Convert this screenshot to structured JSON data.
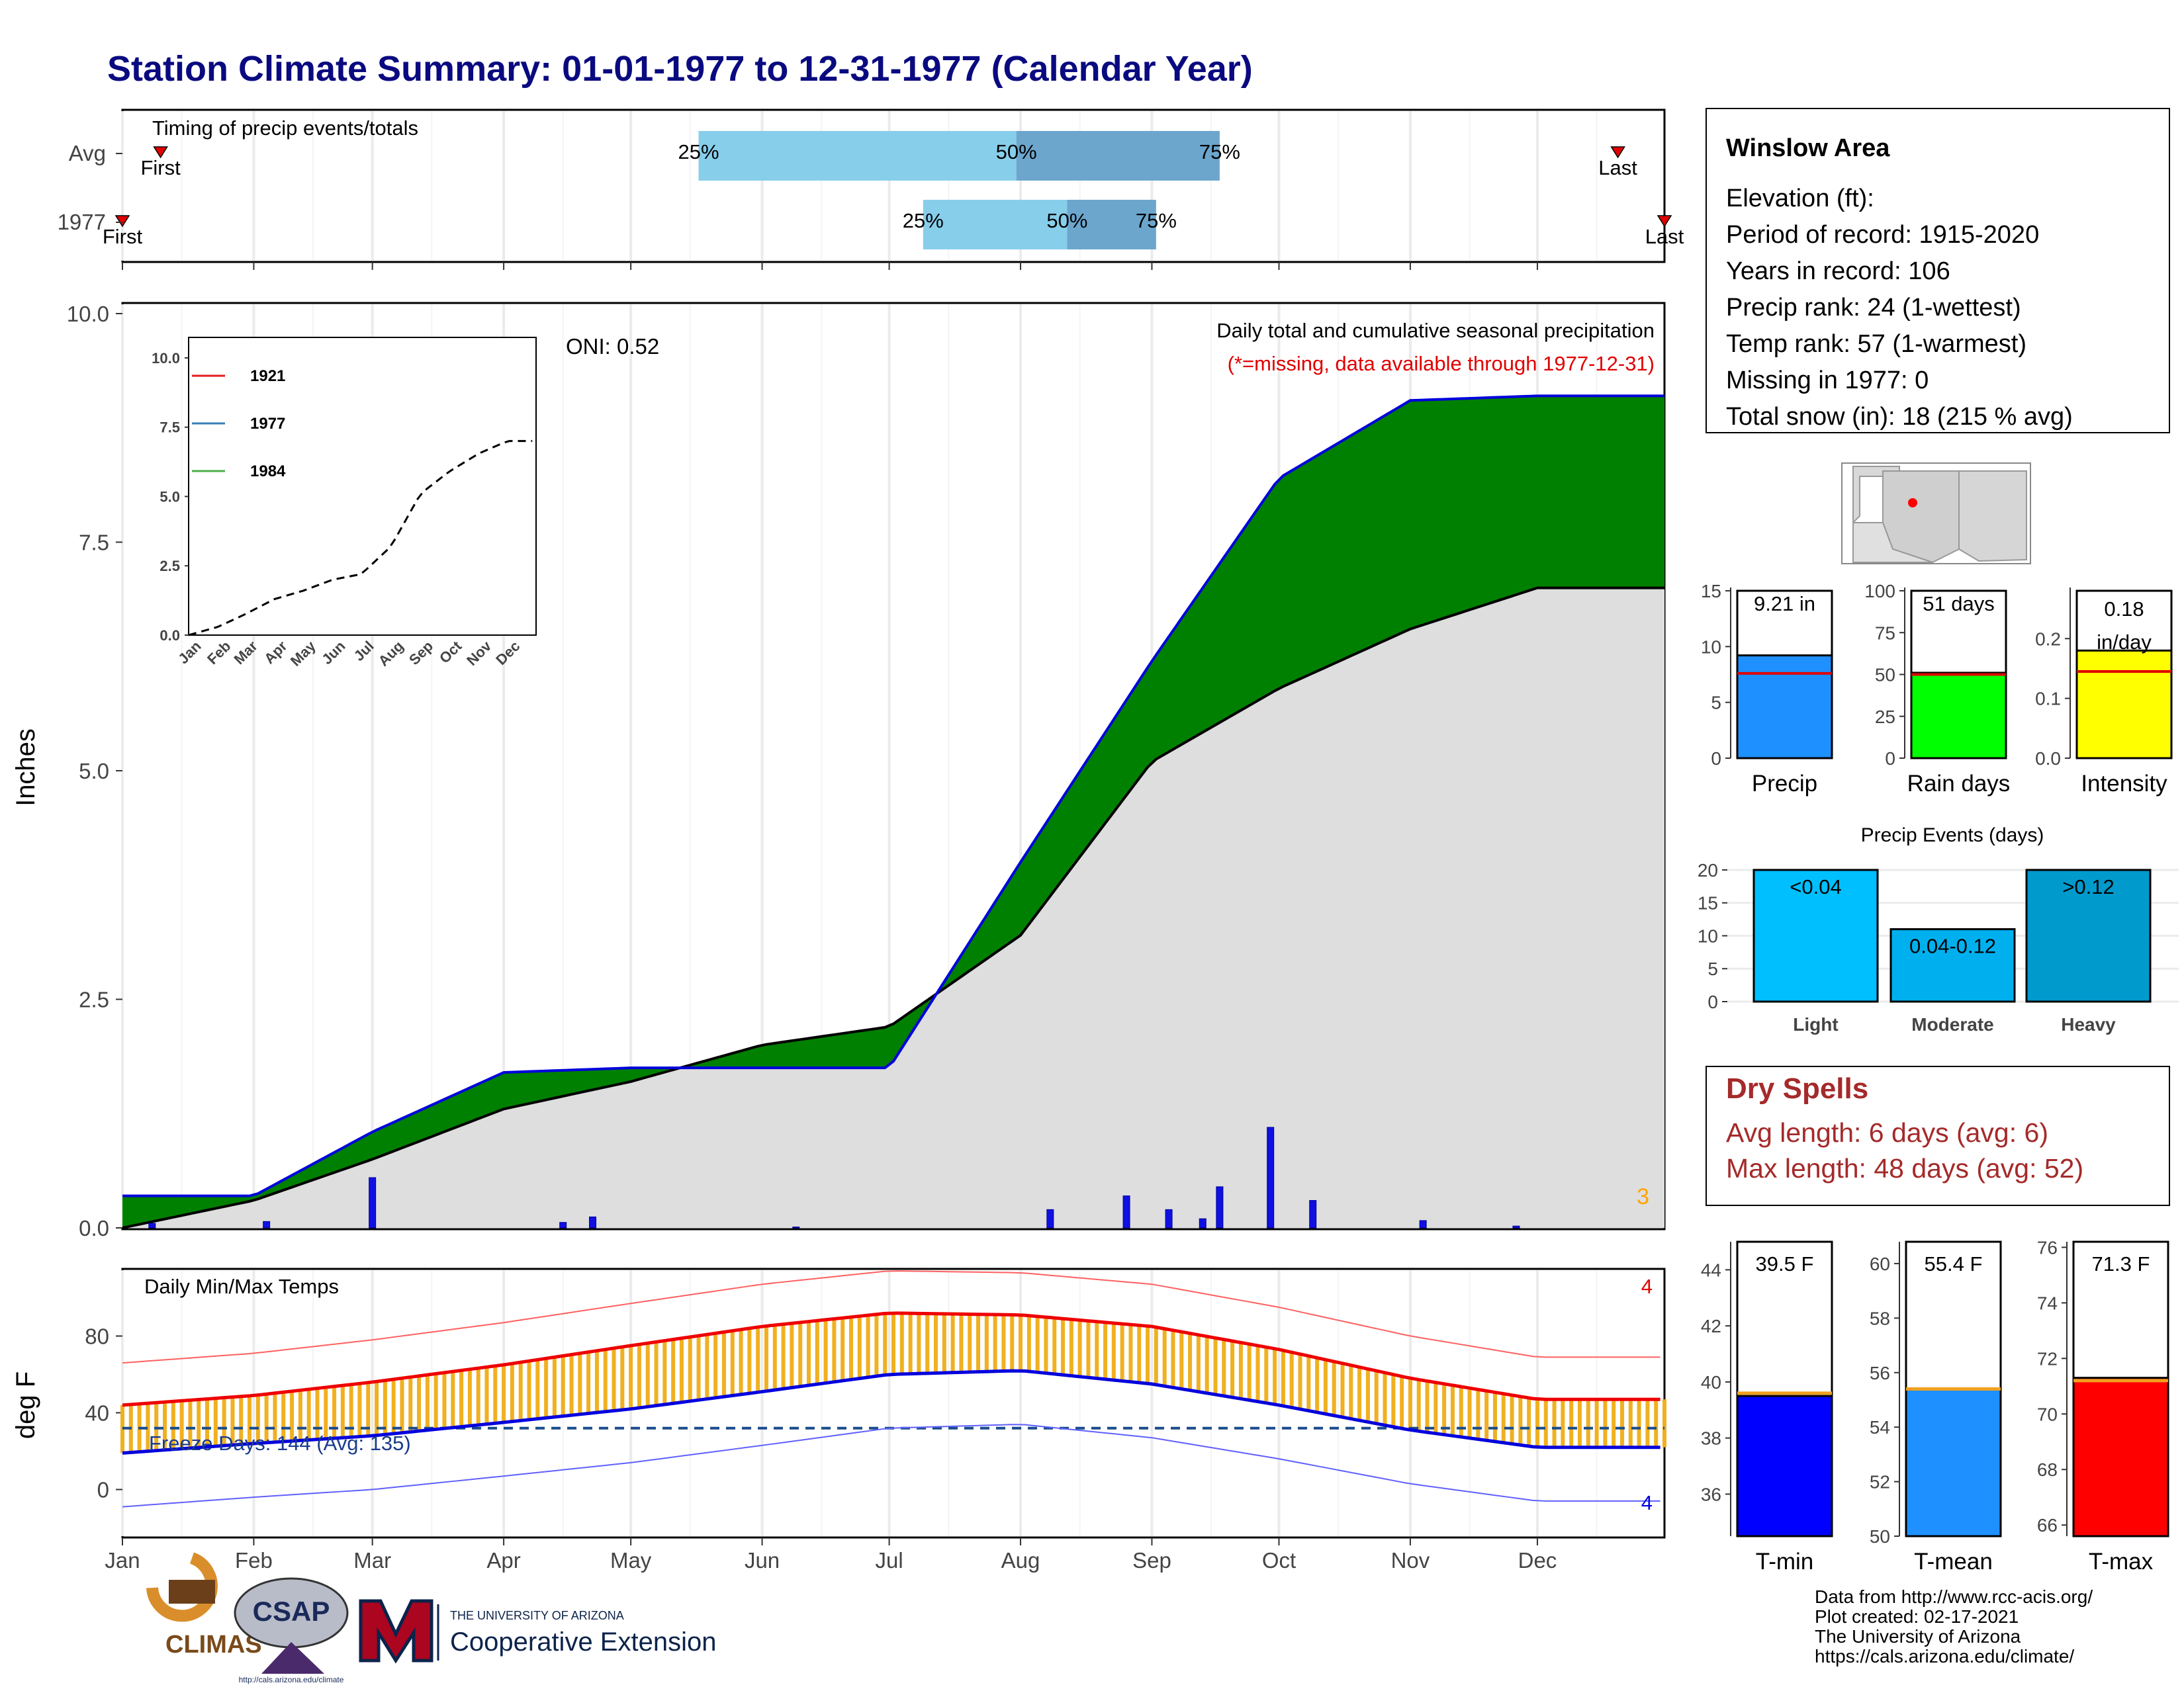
{
  "title": "Station Climate Summary: 01-01-1977 to 12-31-1977 (Calendar Year)",
  "months": [
    "Jan",
    "Feb",
    "Mar",
    "Apr",
    "May",
    "Jun",
    "Jul",
    "Aug",
    "Sep",
    "Oct",
    "Nov",
    "Dec"
  ],
  "timing": {
    "label": "Timing of precip events/totals",
    "rows": [
      {
        "name": "Avg",
        "first_label": "First",
        "last_label": "Last",
        "first_day": 10,
        "last_day": 354,
        "p25": "25%",
        "p50": "50%",
        "p75": "75%",
        "d25": 137,
        "d50": 212,
        "d75": 260
      },
      {
        "name": "1977",
        "first_label": "First",
        "last_label": "Last",
        "first_day": 1,
        "last_day": 365,
        "p25": "25%",
        "p50": "50%",
        "p75": "75%",
        "d25": 190,
        "d50": 224,
        "d75": 245
      }
    ]
  },
  "precip_panel": {
    "ylabel": "Inches",
    "oni": "ONI: 0.52",
    "note1": "Daily total and cumulative seasonal precipitation",
    "note2": "(*=missing, data available through 1977-12-31)",
    "missing_count": "3",
    "yticks": [
      "0.0",
      "2.5",
      "5.0",
      "7.5",
      "10.0"
    ]
  },
  "inset": {
    "legend": [
      "1921",
      "1977",
      "1984"
    ],
    "yticks": [
      "0.0",
      "2.5",
      "5.0",
      "7.5",
      "10.0"
    ],
    "xticks": [
      "Jan",
      "Feb",
      "Mar",
      "Apr",
      "May",
      "Jun",
      "Jul",
      "Aug",
      "Sep",
      "Oct",
      "Nov",
      "Dec"
    ],
    "colors": [
      "#e41a1c",
      "#377eb8",
      "#4daf4a"
    ]
  },
  "temp_panel": {
    "ylabel": "deg F",
    "label": "Daily Min/Max Temps",
    "freeze": "Freeze Days: 144 (Avg: 135)",
    "count_top": "4",
    "count_bottom": "4",
    "yticks": [
      "0",
      "40",
      "80"
    ]
  },
  "station": {
    "name": "Winslow Area",
    "lines": [
      "Elevation (ft):",
      "Period of record: 1915-2020",
      "Years in record: 106",
      "Precip rank: 24 (1-wettest)",
      "Temp rank: 57 (1-warmest)",
      "Missing in 1977: 0",
      "Total snow (in): 18 (215 % avg)"
    ]
  },
  "summary_bars": [
    {
      "name": "Precip",
      "value": 9.21,
      "avg": 7.6,
      "label": "9.21 in",
      "ymax": 15,
      "ticks": [
        "0",
        "5",
        "10",
        "15"
      ],
      "color": "#1e90ff"
    },
    {
      "name": "Rain days",
      "value": 51,
      "avg": 50,
      "label": "51 days",
      "ymax": 100,
      "ticks": [
        "0",
        "25",
        "50",
        "75",
        "100"
      ],
      "color": "#00ff00"
    },
    {
      "name": "Intensity",
      "value": 0.18,
      "avg": 0.145,
      "label": "0.18 in/day",
      "ymax": 0.28,
      "ticks": [
        "0.0",
        "0.1",
        "0.2"
      ],
      "color": "#ffff00"
    }
  ],
  "events": {
    "title": "Precip Events (days)",
    "bars": [
      {
        "name": "Light",
        "value": 20,
        "label": "<0.04",
        "color": "#00bfff"
      },
      {
        "name": "Moderate",
        "value": 11,
        "label": "0.04-0.12",
        "color": "#00b0ee"
      },
      {
        "name": "Heavy",
        "value": 20,
        "label": ">0.12",
        "color": "#009acd"
      }
    ],
    "ticks": [
      "0",
      "5",
      "10",
      "15",
      "20"
    ]
  },
  "dry_spells": {
    "title": "Dry Spells",
    "avg": "Avg length: 6 days (avg: 6)",
    "max": "Max length: 48 days (avg: 52)"
  },
  "temp_bars": [
    {
      "name": "T-min",
      "value": 39.5,
      "avg": 39.6,
      "label": "39.5 F",
      "ymin": 34.5,
      "ymax": 45,
      "ticks": [
        "36",
        "38",
        "40",
        "42",
        "44"
      ],
      "color": "#0000ff"
    },
    {
      "name": "T-mean",
      "value": 55.4,
      "avg": 55.4,
      "label": "55.4 F",
      "ymin": 50,
      "ymax": 60.8,
      "ticks": [
        "50",
        "52",
        "54",
        "56",
        "58",
        "60"
      ],
      "color": "#1e90ff"
    },
    {
      "name": "T-max",
      "value": 71.3,
      "avg": 71.2,
      "label": "71.3 F",
      "ymin": 65.6,
      "ymax": 76.2,
      "ticks": [
        "66",
        "68",
        "70",
        "72",
        "74",
        "76"
      ],
      "color": "#ff0000"
    }
  ],
  "logos": {
    "climas": "CLIMAS",
    "csap": "CSAP",
    "ua_small": "THE UNIVERSITY OF ARIZONA",
    "ua_big": "Cooperative Extension",
    "csap_url": "http://cals.arizona.edu/climate"
  },
  "footer": [
    "Data from http://www.rcc-acis.org/",
    "Plot created: 02-17-2021",
    "The University of Arizona",
    "https://cals.arizona.edu/climate/"
  ],
  "chart_data": [
    {
      "type": "area",
      "title": "Daily total and cumulative seasonal precipitation",
      "ylabel": "Inches",
      "ylim": [
        0,
        10
      ],
      "x": [
        "Jan",
        "Feb",
        "Mar",
        "Apr",
        "May",
        "Jun",
        "Jul",
        "Aug",
        "Sep",
        "Oct",
        "Nov",
        "Dec"
      ],
      "series": [
        {
          "name": "1977",
          "values": [
            0.35,
            0.35,
            1.05,
            1.7,
            1.75,
            1.75,
            1.75,
            4.0,
            6.2,
            8.2,
            9.05,
            9.1
          ]
        },
        {
          "values": [
            0.0,
            0.3,
            0.75,
            1.3,
            1.6,
            2.0,
            2.2,
            3.2,
            5.1,
            5.9,
            6.55,
            7.0
          ]
        }
      ]
    },
    {
      "type": "line",
      "title": "Daily Min/Max Temps",
      "ylabel": "deg F",
      "x": [
        "Jan",
        "Feb",
        "Mar",
        "Apr",
        "May",
        "Jun",
        "Jul",
        "Aug",
        "Sep",
        "Oct",
        "Nov",
        "Dec"
      ],
      "series": [
        {
          "values": [
            44,
            49,
            56,
            65,
            75,
            85,
            92,
            91,
            85,
            73,
            58,
            47
          ]
        },
        {
          "values": [
            19,
            24,
            28,
            35,
            42,
            51,
            60,
            62,
            55,
            44,
            31,
            22
          ]
        }
      ]
    }
  ]
}
